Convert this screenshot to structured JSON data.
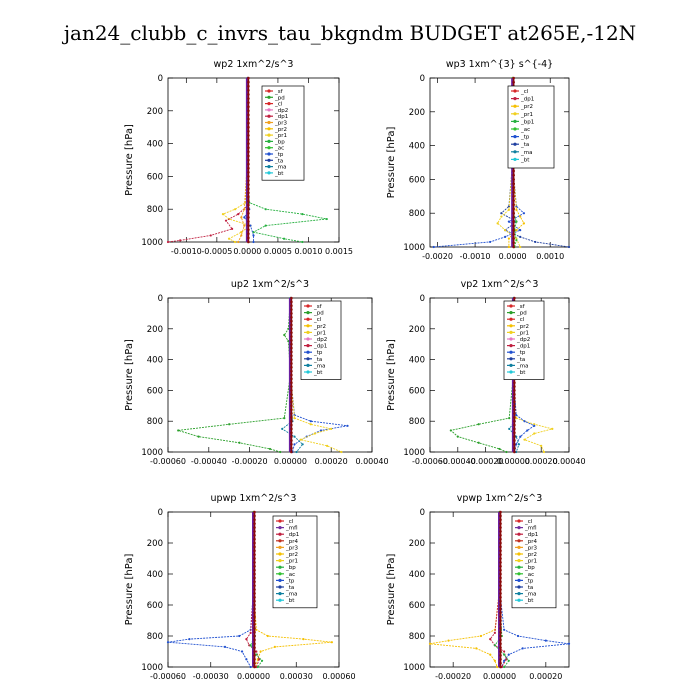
{
  "figure_title": "jan24_clubb_c_invrs_tau_bkgndm  BUDGET at265E,-12N",
  "colors": {
    "sf": "#d62728",
    "pd": "#2ca02c",
    "cl": "#d62728",
    "dp2": "#e377c2",
    "dp1": "#c02040",
    "pr3": "#f0a020",
    "pr2": "#f5c000",
    "pr1": "#f0d020",
    "bp": "#27b040",
    "ac": "#30c030",
    "tp": "#2050d0",
    "ta": "#1f3fa0",
    "ma": "#1080a0",
    "bt": "#20c8d8",
    "mfl": "#7030a0",
    "pr4": "#c03020",
    "total": "#8b0a0a",
    "purple": "#6a1fa0"
  },
  "chart_data": [
    {
      "type": "line",
      "title": "wp2   1xm^2/s^3",
      "ylabel": "Pressure [hPa]",
      "xlim": [
        -0.0013,
        0.0015
      ],
      "ylim": [
        1000,
        0
      ],
      "x_ticks": [
        "-0.0010",
        "-0.0005",
        "0.0000",
        "0.0005",
        "0.0010",
        "0.0015"
      ],
      "x_tick_values": [
        -0.001,
        -0.0005,
        0,
        0.0005,
        0.001,
        0.0015
      ],
      "y_ticks": [
        "0",
        "200",
        "400",
        "600",
        "800",
        "1000"
      ],
      "y_tick_values": [
        0,
        200,
        400,
        600,
        800,
        1000
      ],
      "legend": [
        "_sf",
        "_pd",
        "_cl",
        "_dp2",
        "_dp1",
        "_pr3",
        "_pr2",
        "_pr1",
        "_bp",
        "_ac",
        "_tp",
        "_ta",
        "_ma",
        "_bt"
      ],
      "legend_keys": [
        "sf",
        "pd",
        "cl",
        "dp2",
        "dp1",
        "pr3",
        "pr2",
        "pr1",
        "bp",
        "ac",
        "tp",
        "ta",
        "ma",
        "bt"
      ],
      "series": [
        {
          "key": "bp",
          "p": [
            0,
            500,
            760,
            800,
            830,
            860,
            900,
            940,
            980,
            1000
          ],
          "v": [
            0,
            0,
            3e-05,
            0.0003,
            0.0009,
            0.0013,
            0.0003,
            0.0001,
            0.0006,
            0.0009
          ]
        },
        {
          "key": "pr1",
          "p": [
            0,
            500,
            760,
            800,
            830,
            860,
            900,
            940,
            980,
            1000
          ],
          "v": [
            0,
            0,
            -3e-05,
            -0.0002,
            -0.0004,
            -0.0003,
            5e-05,
            -0.0001,
            -0.0003,
            -0.0002
          ]
        },
        {
          "key": "dp1",
          "p": [
            0,
            500,
            780,
            830,
            870,
            920,
            960,
            990,
            1000
          ],
          "v": [
            0,
            0,
            0,
            -0.00015,
            -0.00035,
            -0.00025,
            -0.0006,
            -0.0011,
            -0.0013
          ]
        },
        {
          "key": "pr3",
          "p": [
            0,
            500,
            800,
            850,
            900,
            960,
            1000
          ],
          "v": [
            0,
            0,
            -5e-05,
            -0.0001,
            -5e-05,
            -0.0001,
            -0.00015
          ]
        },
        {
          "key": "tp",
          "p": [
            0,
            500,
            800,
            850,
            900,
            960,
            1000
          ],
          "v": [
            0,
            0,
            3e-05,
            -5e-05,
            5e-05,
            0.0001,
            0.0001
          ]
        }
      ]
    },
    {
      "type": "line",
      "title": "wp3   1xm^{3} s^{-4}",
      "ylabel": "Pressure [hPa]",
      "xlim": [
        -0.0022,
        0.0015
      ],
      "ylim": [
        1000,
        0
      ],
      "x_ticks": [
        "-0.0020",
        "-0.0010",
        "0.0000",
        "0.0010"
      ],
      "x_tick_values": [
        -0.002,
        -0.001,
        0,
        0.001
      ],
      "y_ticks": [
        "0",
        "200",
        "400",
        "600",
        "800",
        "1000"
      ],
      "y_tick_values": [
        0,
        200,
        400,
        600,
        800,
        1000
      ],
      "legend": [
        "_cl",
        "_dp1",
        "_pr2",
        "_pr1",
        "_bp1",
        "_ac",
        "_tp",
        "_ta",
        "_ma",
        "_bt"
      ],
      "legend_keys": [
        "cl",
        "dp1",
        "pr2",
        "pr1",
        "bp",
        "ac",
        "tp",
        "ta",
        "ma",
        "bt"
      ],
      "series": [
        {
          "key": "tp",
          "p": [
            0,
            500,
            760,
            800,
            850,
            900,
            940,
            970,
            1000
          ],
          "v": [
            0,
            0,
            0.0001,
            0.0003,
            -0.0001,
            0.0002,
            -0.0002,
            -0.0006,
            -0.0021
          ]
        },
        {
          "key": "ta",
          "p": [
            0,
            500,
            760,
            800,
            850,
            900,
            940,
            970,
            1000
          ],
          "v": [
            0,
            0,
            -0.0001,
            -0.0003,
            0.0001,
            -0.0002,
            0.0002,
            0.0006,
            0.0015
          ]
        },
        {
          "key": "pr1",
          "p": [
            0,
            500,
            780,
            820,
            860,
            900,
            950,
            1000
          ],
          "v": [
            0,
            0,
            -0.0001,
            -0.0003,
            -0.0004,
            -0.0002,
            0.0001,
            0.0002
          ]
        },
        {
          "key": "pr2",
          "p": [
            0,
            500,
            780,
            820,
            860,
            900,
            950,
            1000
          ],
          "v": [
            0,
            0,
            0.0001,
            0.0002,
            0.0003,
            0.0001,
            -0.0001,
            -0.0001
          ]
        },
        {
          "key": "ac",
          "p": [
            0,
            500,
            800,
            850,
            900,
            960,
            1000
          ],
          "v": [
            0,
            0,
            3e-05,
            0.0001,
            5e-05,
            0.0001,
            5e-05
          ]
        }
      ]
    },
    {
      "type": "line",
      "title": "up2   1xm^2/s^3",
      "ylabel": "Pressure [hPa]",
      "xlim": [
        -0.0006,
        0.0004
      ],
      "ylim": [
        1000,
        0
      ],
      "x_ticks": [
        "-0.00060",
        "-0.00040",
        "-0.00020",
        "0.00000",
        "0.00020",
        "0.00040"
      ],
      "x_tick_values": [
        -0.0006,
        -0.0004,
        -0.0002,
        0,
        0.0002,
        0.0004
      ],
      "y_ticks": [
        "0",
        "200",
        "400",
        "600",
        "800",
        "1000"
      ],
      "y_tick_values": [
        0,
        200,
        400,
        600,
        800,
        1000
      ],
      "legend": [
        "_sf",
        "_pd",
        "_cl",
        "_pr2",
        "_pr1",
        "_dp2",
        "_dp1",
        "_tp",
        "_ta",
        "_ma",
        "_bt"
      ],
      "legend_keys": [
        "sf",
        "pd",
        "cl",
        "pr2",
        "pr1",
        "dp2",
        "dp1",
        "tp",
        "ta",
        "ma",
        "bt"
      ],
      "series": [
        {
          "key": "pd",
          "p": [
            0,
            200,
            240,
            280,
            500,
            780,
            820,
            860,
            900,
            940,
            980,
            1000
          ],
          "v": [
            0,
            -1e-05,
            -3e-05,
            -1e-05,
            0,
            -3e-05,
            -0.0003,
            -0.00055,
            -0.00045,
            -0.00025,
            -0.0001,
            -5e-05
          ]
        },
        {
          "key": "tp",
          "p": [
            0,
            500,
            760,
            800,
            830,
            860,
            900,
            950,
            1000
          ],
          "v": [
            0,
            0,
            2e-05,
            0.0001,
            0.00028,
            0.00015,
            8e-05,
            2e-05,
            1e-05
          ]
        },
        {
          "key": "pr1",
          "p": [
            0,
            500,
            780,
            820,
            850,
            880,
            920,
            960,
            1000
          ],
          "v": [
            0,
            0,
            2e-05,
            0.0001,
            0.0002,
            0.00012,
            5e-05,
            0.00018,
            0.00025
          ]
        },
        {
          "key": "ma",
          "p": [
            0,
            500,
            800,
            850,
            900,
            950,
            1000
          ],
          "v": [
            0,
            0,
            1e-05,
            -4e-05,
            2e-05,
            6e-05,
            3e-05
          ]
        }
      ]
    },
    {
      "type": "line",
      "title": "vp2   1xm^2/s^3",
      "ylabel": "Pressure [hPa]",
      "xlim": [
        -0.0006,
        0.0004
      ],
      "ylim": [
        1000,
        0
      ],
      "x_ticks": [
        "-0.00060",
        "-0.00040",
        "-0.00020",
        "0.00000",
        "0.00020",
        "0.00040"
      ],
      "x_tick_values": [
        -0.0006,
        -0.0004,
        -0.0002,
        0,
        0.0002,
        0.0004
      ],
      "y_ticks": [
        "0",
        "200",
        "400",
        "600",
        "800",
        "1000"
      ],
      "y_tick_values": [
        0,
        200,
        400,
        600,
        800,
        1000
      ],
      "legend": [
        "_sf",
        "_pd",
        "_cl",
        "_pr2",
        "_pr1",
        "_dp2",
        "_dp1",
        "_tp",
        "_ta",
        "_ma",
        "_bt"
      ],
      "legend_keys": [
        "sf",
        "pd",
        "cl",
        "pr2",
        "pr1",
        "dp2",
        "dp1",
        "tp",
        "ta",
        "ma",
        "bt"
      ],
      "series": [
        {
          "key": "pd",
          "p": [
            0,
            200,
            260,
            300,
            500,
            780,
            820,
            860,
            900,
            940,
            980,
            1000
          ],
          "v": [
            0,
            0,
            -2e-05,
            0,
            0,
            -3e-05,
            -0.00025,
            -0.00045,
            -0.0004,
            -0.00025,
            -0.0001,
            -5e-05
          ]
        },
        {
          "key": "pr1",
          "p": [
            0,
            500,
            780,
            820,
            850,
            880,
            920,
            960,
            1000
          ],
          "v": [
            0,
            0,
            2e-05,
            0.00015,
            0.00028,
            0.00015,
            8e-05,
            0.0002,
            0.00022
          ]
        },
        {
          "key": "tp",
          "p": [
            0,
            500,
            760,
            800,
            830,
            860,
            900,
            950,
            1000
          ],
          "v": [
            0,
            0,
            2e-05,
            8e-05,
            0.00015,
            0.0001,
            5e-05,
            2e-05,
            1e-05
          ]
        },
        {
          "key": "ma",
          "p": [
            0,
            500,
            800,
            850,
            900,
            950,
            1000
          ],
          "v": [
            0,
            0,
            1e-05,
            -3e-05,
            2e-05,
            4e-05,
            2e-05
          ]
        }
      ]
    },
    {
      "type": "line",
      "title": "upwp   1xm^2/s^3",
      "ylabel": "Pressure [hPa]",
      "xlim": [
        -0.0006,
        0.0006
      ],
      "ylim": [
        1000,
        0
      ],
      "x_ticks": [
        "-0.00060",
        "-0.00030",
        "0.00000",
        "0.00030",
        "0.00060"
      ],
      "x_tick_values": [
        -0.0006,
        -0.0003,
        0,
        0.0003,
        0.0006
      ],
      "y_ticks": [
        "0",
        "200",
        "400",
        "600",
        "800",
        "1000"
      ],
      "y_tick_values": [
        0,
        200,
        400,
        600,
        800,
        1000
      ],
      "legend": [
        "_cl",
        "_mfl",
        "_dp1",
        "_pr4",
        "_pr3",
        "_pr2",
        "_pr1",
        "_bp",
        "_ac",
        "_tp",
        "_ta",
        "_ma",
        "_bt"
      ],
      "legend_keys": [
        "cl",
        "mfl",
        "dp1",
        "pr4",
        "pr3",
        "pr2",
        "pr1",
        "bp",
        "ac",
        "tp",
        "ta",
        "ma",
        "bt"
      ],
      "series": [
        {
          "key": "tp",
          "p": [
            0,
            500,
            760,
            800,
            820,
            840,
            870,
            900,
            950,
            1000
          ],
          "v": [
            0,
            0,
            -2e-05,
            -0.0001,
            -0.00045,
            -0.0006,
            -0.0002,
            -8e-05,
            -5e-05,
            -2e-05
          ]
        },
        {
          "key": "pr2",
          "p": [
            0,
            500,
            760,
            800,
            820,
            840,
            870,
            900,
            950,
            1000
          ],
          "v": [
            0,
            0,
            2e-05,
            0.0001,
            0.00035,
            0.00055,
            0.00015,
            5e-05,
            3e-05,
            1e-05
          ]
        },
        {
          "key": "dp1",
          "p": [
            0,
            500,
            780,
            820,
            860,
            900,
            950,
            1000
          ],
          "v": [
            0,
            0,
            -2e-05,
            -5e-05,
            -3e-05,
            2e-05,
            4e-05,
            2e-05
          ]
        },
        {
          "key": "bp",
          "p": [
            0,
            500,
            800,
            860,
            920,
            960,
            1000
          ],
          "v": [
            0,
            0,
            1e-05,
            -2e-05,
            2e-05,
            6e-05,
            3e-05
          ]
        }
      ]
    },
    {
      "type": "line",
      "title": "vpwp   1xm^2/s^3",
      "ylabel": "Pressure [hPa]",
      "xlim": [
        -0.0003,
        0.0003
      ],
      "ylim": [
        1000,
        0
      ],
      "x_ticks": [
        "-0.00020",
        "0.00000",
        "0.00020"
      ],
      "x_tick_values": [
        -0.0002,
        0,
        0.0002
      ],
      "y_ticks": [
        "0",
        "200",
        "400",
        "600",
        "800",
        "1000"
      ],
      "y_tick_values": [
        0,
        200,
        400,
        600,
        800,
        1000
      ],
      "legend": [
        "_cl",
        "_mfl",
        "_dp1",
        "_pr4",
        "_pr3",
        "_pr2",
        "_pr1",
        "_bp",
        "_ac",
        "_tp",
        "_ta",
        "_ma",
        "_bt"
      ],
      "legend_keys": [
        "cl",
        "mfl",
        "dp1",
        "pr4",
        "pr3",
        "pr2",
        "pr1",
        "bp",
        "ac",
        "tp",
        "ta",
        "ma",
        "bt"
      ],
      "series": [
        {
          "key": "pr2",
          "p": [
            0,
            500,
            760,
            800,
            830,
            850,
            880,
            920,
            960,
            1000
          ],
          "v": [
            0,
            0,
            -2e-05,
            -8e-05,
            -0.00022,
            -0.0003,
            -0.0001,
            -4e-05,
            -2e-05,
            -1e-05
          ]
        },
        {
          "key": "tp",
          "p": [
            0,
            500,
            760,
            800,
            830,
            850,
            880,
            920,
            960,
            1000
          ],
          "v": [
            0,
            0,
            2e-05,
            8e-05,
            0.0002,
            0.0003,
            0.0001,
            4e-05,
            2e-05,
            1e-05
          ]
        },
        {
          "key": "dp1",
          "p": [
            0,
            500,
            780,
            820,
            860,
            900,
            950,
            1000
          ],
          "v": [
            0,
            0,
            -2e-05,
            -4e-05,
            -2e-05,
            2e-05,
            3e-05,
            1e-05
          ]
        },
        {
          "key": "bp",
          "p": [
            0,
            500,
            800,
            860,
            920,
            960,
            1000
          ],
          "v": [
            0,
            0,
            1e-05,
            -2e-05,
            2e-05,
            4e-05,
            2e-05
          ]
        }
      ]
    }
  ]
}
